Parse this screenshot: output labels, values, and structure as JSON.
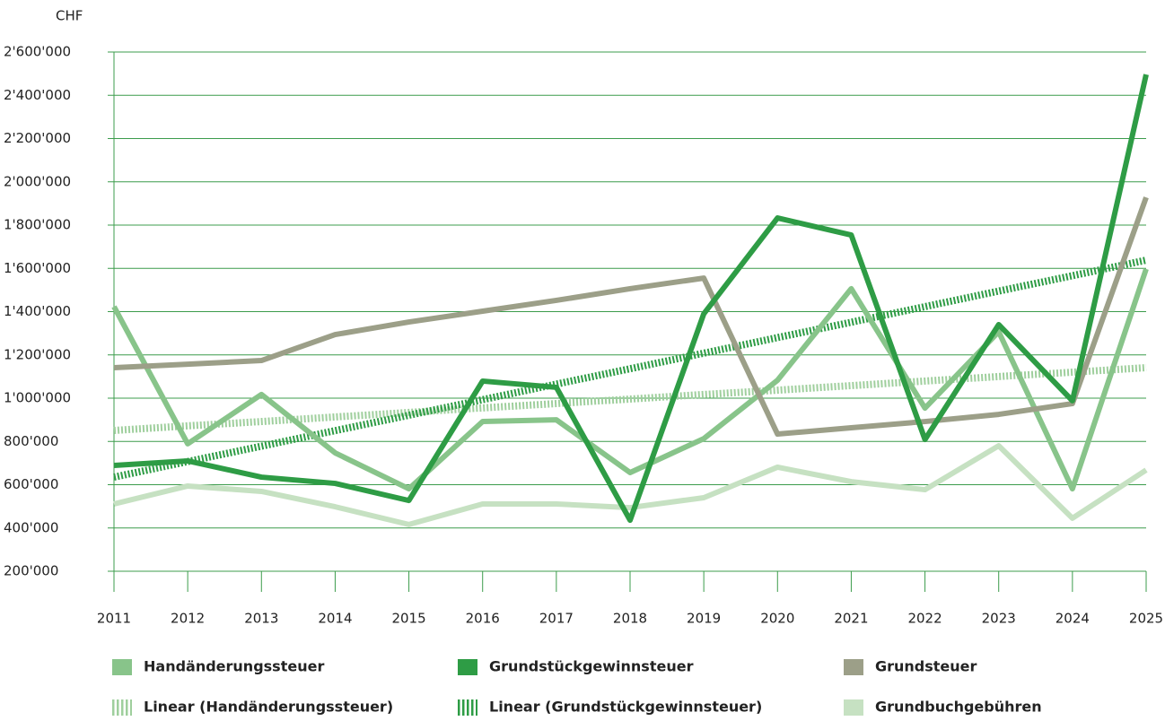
{
  "chart_data": {
    "type": "line",
    "y_label": "CHF",
    "categories": [
      "2011",
      "2012",
      "2013",
      "2014",
      "2015",
      "2016",
      "2017",
      "2018",
      "2019",
      "2020",
      "2021",
      "2022",
      "2023",
      "2024",
      "2025"
    ],
    "ylim": [
      200000,
      2600000
    ],
    "yticks": [
      {
        "value": 200000,
        "label": "200'000"
      },
      {
        "value": 400000,
        "label": "400'000"
      },
      {
        "value": 600000,
        "label": "600'000"
      },
      {
        "value": 800000,
        "label": "800'000"
      },
      {
        "value": 1000000,
        "label": "1'000'000"
      },
      {
        "value": 1200000,
        "label": "1'200'000"
      },
      {
        "value": 1400000,
        "label": "1'400'000"
      },
      {
        "value": 1600000,
        "label": "1'600'000"
      },
      {
        "value": 1800000,
        "label": "1'800'000"
      },
      {
        "value": 2000000,
        "label": "2'000'000"
      },
      {
        "value": 2200000,
        "label": "2'200'000"
      },
      {
        "value": 2400000,
        "label": "2'400'000"
      },
      {
        "value": 2600000,
        "label": "2'600'000"
      }
    ],
    "grid": true,
    "legend": "bottom",
    "series": [
      {
        "name": "Handänderungssteuer",
        "color": "#88c48a",
        "style": "solid",
        "values": [
          1423000,
          789000,
          1017000,
          747000,
          581000,
          892000,
          900000,
          656000,
          813000,
          1083000,
          1506000,
          954000,
          1307000,
          581000,
          1597000
        ]
      },
      {
        "name": "Grundstückgewinnsteuer",
        "color": "#2e9c45",
        "style": "solid",
        "values": [
          689000,
          710000,
          635000,
          606000,
          527000,
          1079000,
          1050000,
          436000,
          1390000,
          1833000,
          1754000,
          809000,
          1340000,
          988000,
          2496000
        ]
      },
      {
        "name": "Grundsteuer",
        "color": "#9c9f88",
        "style": "solid",
        "values": [
          1141000,
          1157000,
          1174000,
          1294000,
          1352000,
          1402000,
          1452000,
          1506000,
          1555000,
          834000,
          863000,
          892000,
          925000,
          975000,
          1928000
        ]
      },
      {
        "name": "Linear (Handänderungssteuer)",
        "color": "#9fcf9d",
        "style": "dashed",
        "values": [
          851000,
          872000,
          892000,
          913000,
          934000,
          955000,
          975000,
          996000,
          1017000,
          1037000,
          1058000,
          1079000,
          1100000,
          1120000,
          1141000
        ]
      },
      {
        "name": "Linear (Grundstückgewinnsteuer)",
        "color": "#2e9c45",
        "style": "dashed",
        "values": [
          635000,
          707000,
          778000,
          850000,
          921000,
          993000,
          1065000,
          1136000,
          1208000,
          1280000,
          1351000,
          1423000,
          1495000,
          1566000,
          1638000
        ]
      },
      {
        "name": "Grundbuchgebühren",
        "color": "#c6e1c2",
        "style": "solid",
        "values": [
          511000,
          594000,
          569000,
          498000,
          416000,
          511000,
          511000,
          494000,
          540000,
          681000,
          614000,
          577000,
          780000,
          445000,
          668000
        ]
      }
    ]
  }
}
